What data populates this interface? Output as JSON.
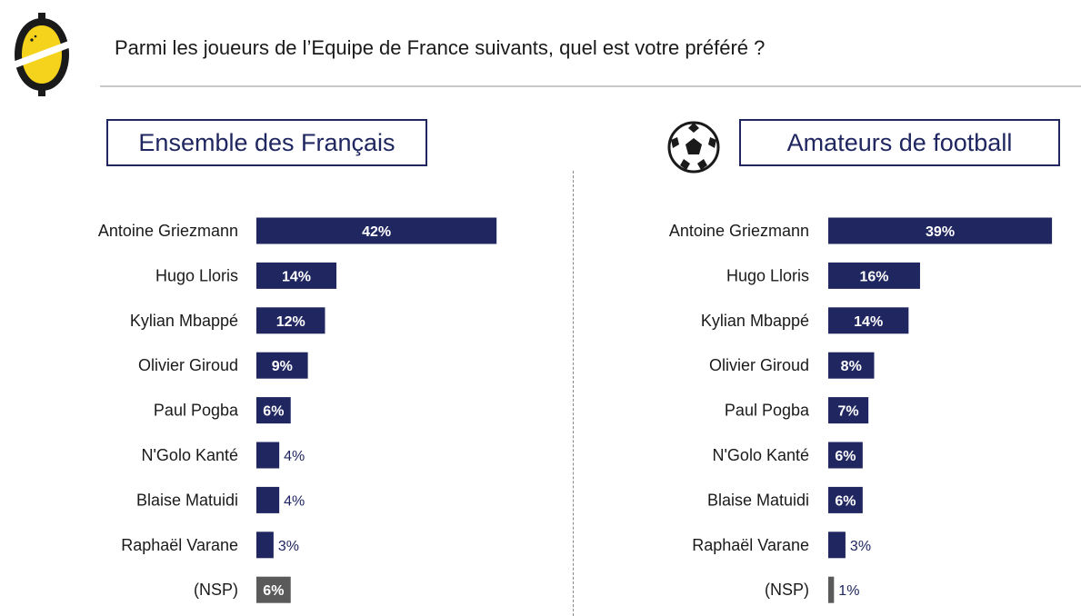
{
  "header": {
    "question": "Parmi les joueurs de l’Equipe de France suivants, quel est votre préféré ?"
  },
  "colors": {
    "bar": "#1f2660",
    "bar_nsp": "#5a5a5a",
    "logo_yellow": "#f5d21c",
    "logo_black": "#1a1a1a"
  },
  "icons": [
    "logo-icon",
    "soccer-ball-icon"
  ],
  "chart_data": [
    {
      "type": "bar",
      "orientation": "horizontal",
      "title": "Ensemble des Français",
      "categories": [
        "Antoine Griezmann",
        "Hugo Lloris",
        "Kylian Mbappé",
        "Olivier Giroud",
        "Paul Pogba",
        "N'Golo Kanté",
        "Blaise Matuidi",
        "Raphaël Varane",
        "(NSP)"
      ],
      "values": [
        42,
        14,
        12,
        9,
        6,
        4,
        4,
        3,
        6
      ],
      "data_labels": [
        "42%",
        "14%",
        "12%",
        "9%",
        "6%",
        "4%",
        "4%",
        "3%",
        "6%"
      ],
      "unit": "%",
      "grid": false,
      "legend": "none"
    },
    {
      "type": "bar",
      "orientation": "horizontal",
      "title": "Amateurs de football",
      "categories": [
        "Antoine Griezmann",
        "Hugo Lloris",
        "Kylian Mbappé",
        "Olivier Giroud",
        "Paul Pogba",
        "N'Golo Kanté",
        "Blaise Matuidi",
        "Raphaël Varane",
        "(NSP)"
      ],
      "values": [
        39,
        16,
        14,
        8,
        7,
        6,
        6,
        3,
        1
      ],
      "data_labels": [
        "39%",
        "16%",
        "14%",
        "8%",
        "7%",
        "6%",
        "6%",
        "3%",
        "1%"
      ],
      "unit": "%",
      "grid": false,
      "legend": "none"
    }
  ]
}
